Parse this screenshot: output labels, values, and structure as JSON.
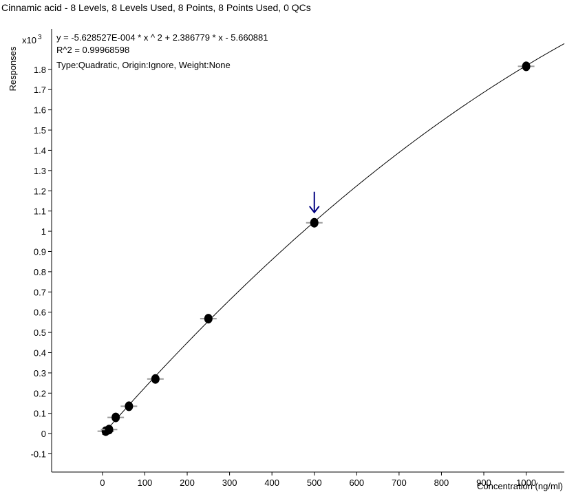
{
  "chart_data": {
    "type": "scatter",
    "title": "Cinnamic acid - 8 Levels, 8 Levels Used, 8 Points, 8 Points Used, 0 QCs",
    "xlabel": "Concentration (ng/ml)",
    "ylabel": "Responses",
    "y_multiplier": "x10",
    "y_multiplier_exp": "3",
    "xlim": [
      -120,
      1090
    ],
    "ylim": [
      -0.19,
      2.0
    ],
    "xticks": [
      0,
      100,
      200,
      300,
      400,
      500,
      600,
      700,
      800,
      900,
      1000
    ],
    "yticks": [
      -0.1,
      0,
      0.1,
      0.2,
      0.3,
      0.4,
      0.5,
      0.6,
      0.7,
      0.8,
      0.9,
      1,
      1.1,
      1.2,
      1.3,
      1.4,
      1.5,
      1.6,
      1.7,
      1.8
    ],
    "equation": "y = -5.628527E-004 * x ^ 2  + 2.386779 * x  - 5.660881",
    "r_squared": "R^2 = 0.99968598",
    "fit_type": "Type:Quadratic, Origin:Ignore, Weight:None",
    "fit_coefficients": {
      "a": -0.0005628527,
      "b": 2.386779,
      "c": -5.660881
    },
    "points": [
      {
        "x": 7.8,
        "y": 0.012
      },
      {
        "x": 15.6,
        "y": 0.02
      },
      {
        "x": 31.25,
        "y": 0.08
      },
      {
        "x": 62.5,
        "y": 0.135
      },
      {
        "x": 125,
        "y": 0.27
      },
      {
        "x": 250,
        "y": 0.568
      },
      {
        "x": 500,
        "y": 1.042
      },
      {
        "x": 1000,
        "y": 1.815
      }
    ],
    "highlight_point": {
      "x": 500,
      "y": 1.042
    },
    "colors": {
      "points": "#000000",
      "curve": "#000000",
      "point_bar": "#9a9a9a",
      "arrow": "#000080",
      "axis": "#000000"
    },
    "grid": false
  }
}
